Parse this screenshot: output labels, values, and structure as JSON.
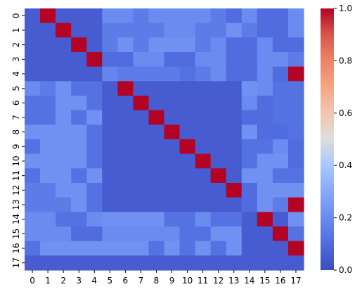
{
  "chart_data": {
    "type": "heatmap",
    "title": "",
    "xlabel": "",
    "ylabel": "",
    "x_ticks": [
      "0",
      "1",
      "2",
      "3",
      "4",
      "5",
      "6",
      "7",
      "8",
      "9",
      "10",
      "11",
      "12",
      "13",
      "14",
      "15",
      "16",
      "17"
    ],
    "y_ticks": [
      "0",
      "1",
      "2",
      "3",
      "4",
      "5",
      "6",
      "7",
      "8",
      "9",
      "10",
      "11",
      "12",
      "13",
      "14",
      "15",
      "16",
      "17"
    ],
    "colormap": "coolwarm",
    "vmin": 0.0,
    "vmax": 1.0,
    "colorbar_ticks": [
      "0.0",
      "0.2",
      "0.4",
      "0.6",
      "0.8",
      "1.0"
    ],
    "colorbar_tick_values": [
      0.0,
      0.2,
      0.4,
      0.6,
      0.8,
      1.0
    ],
    "legend_placement": "right",
    "matrix": [
      [
        0.05,
        1.0,
        0.05,
        0.05,
        0.05,
        0.2,
        0.2,
        0.15,
        0.2,
        0.2,
        0.2,
        0.2,
        0.15,
        0.1,
        0.2,
        0.1,
        0.1,
        0.2
      ],
      [
        0.05,
        0.05,
        1.0,
        0.05,
        0.05,
        0.15,
        0.15,
        0.15,
        0.15,
        0.2,
        0.2,
        0.15,
        0.15,
        0.22,
        0.15,
        0.1,
        0.1,
        0.2
      ],
      [
        0.05,
        0.05,
        0.05,
        1.0,
        0.05,
        0.15,
        0.22,
        0.15,
        0.22,
        0.22,
        0.22,
        0.15,
        0.2,
        0.1,
        0.1,
        0.2,
        0.1,
        0.1
      ],
      [
        0.05,
        0.05,
        0.05,
        0.05,
        1.0,
        0.1,
        0.1,
        0.2,
        0.2,
        0.1,
        0.1,
        0.2,
        0.2,
        0.1,
        0.1,
        0.2,
        0.2,
        0.15
      ],
      [
        0.05,
        0.05,
        0.05,
        0.05,
        0.05,
        0.18,
        0.15,
        0.15,
        0.15,
        0.15,
        0.12,
        0.15,
        0.2,
        0.1,
        0.1,
        0.2,
        0.1,
        1.0
      ],
      [
        0.2,
        0.15,
        0.22,
        0.12,
        0.12,
        0.05,
        1.0,
        0.05,
        0.05,
        0.05,
        0.05,
        0.05,
        0.05,
        0.05,
        0.22,
        0.2,
        0.12,
        0.12
      ],
      [
        0.12,
        0.12,
        0.22,
        0.22,
        0.12,
        0.05,
        0.05,
        1.0,
        0.05,
        0.05,
        0.05,
        0.05,
        0.05,
        0.05,
        0.2,
        0.1,
        0.12,
        0.12
      ],
      [
        0.12,
        0.12,
        0.22,
        0.12,
        0.22,
        0.05,
        0.05,
        0.05,
        1.0,
        0.05,
        0.05,
        0.05,
        0.05,
        0.05,
        0.1,
        0.1,
        0.12,
        0.12
      ],
      [
        0.22,
        0.22,
        0.22,
        0.22,
        0.12,
        0.05,
        0.05,
        0.05,
        0.05,
        1.0,
        0.05,
        0.05,
        0.05,
        0.05,
        0.22,
        0.1,
        0.1,
        0.12
      ],
      [
        0.12,
        0.22,
        0.22,
        0.22,
        0.12,
        0.05,
        0.05,
        0.05,
        0.05,
        0.05,
        1.0,
        0.05,
        0.05,
        0.05,
        0.12,
        0.12,
        0.2,
        0.1
      ],
      [
        0.22,
        0.22,
        0.22,
        0.22,
        0.12,
        0.05,
        0.05,
        0.05,
        0.05,
        0.05,
        0.05,
        1.0,
        0.05,
        0.05,
        0.12,
        0.22,
        0.22,
        0.1
      ],
      [
        0.12,
        0.22,
        0.22,
        0.12,
        0.22,
        0.05,
        0.05,
        0.05,
        0.05,
        0.05,
        0.05,
        0.05,
        1.0,
        0.05,
        0.22,
        0.22,
        0.12,
        0.12
      ],
      [
        0.15,
        0.15,
        0.22,
        0.22,
        0.12,
        0.05,
        0.05,
        0.05,
        0.05,
        0.05,
        0.05,
        0.05,
        0.05,
        1.0,
        0.1,
        0.22,
        0.22,
        0.22
      ],
      [
        0.15,
        0.15,
        0.15,
        0.22,
        0.12,
        0.05,
        0.05,
        0.05,
        0.05,
        0.05,
        0.05,
        0.05,
        0.05,
        0.05,
        0.1,
        0.22,
        0.15,
        1.0
      ],
      [
        0.2,
        0.2,
        0.12,
        0.12,
        0.2,
        0.22,
        0.22,
        0.22,
        0.22,
        0.12,
        0.12,
        0.2,
        0.12,
        0.12,
        0.05,
        1.0,
        0.05,
        0.22
      ],
      [
        0.2,
        0.2,
        0.2,
        0.1,
        0.1,
        0.2,
        0.2,
        0.2,
        0.2,
        0.2,
        0.12,
        0.12,
        0.22,
        0.22,
        0.05,
        0.05,
        1.0,
        0.12
      ],
      [
        0.12,
        0.22,
        0.22,
        0.22,
        0.22,
        0.22,
        0.22,
        0.22,
        0.12,
        0.22,
        0.12,
        0.22,
        0.12,
        0.22,
        0.05,
        0.05,
        0.05,
        1.0
      ],
      [
        0.05,
        0.05,
        0.05,
        0.05,
        0.05,
        0.05,
        0.05,
        0.05,
        0.05,
        0.05,
        0.05,
        0.05,
        0.05,
        0.05,
        0.05,
        0.05,
        0.05,
        0.05
      ]
    ]
  }
}
